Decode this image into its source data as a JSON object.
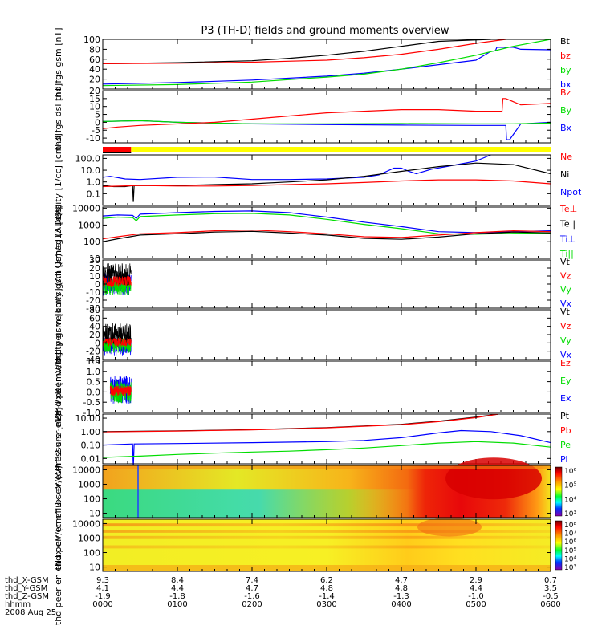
{
  "title": "P3 (TH-D) fields and ground moments overview",
  "colors": {
    "black": "#000000",
    "red": "#ff0000",
    "green": "#00dd00",
    "blue": "#0000ff",
    "yellow": "#ffff00",
    "bg": "#ffffff"
  },
  "chart_data": [
    {
      "type": "line",
      "ylabel": "thd fgs gsm [nT]",
      "yscale": "linear",
      "ylim": [
        0,
        100
      ],
      "yticks": [
        "100",
        "80",
        "60",
        "40",
        "20"
      ],
      "xlim": [
        0,
        6
      ],
      "legend": [
        {
          "label": "Bt",
          "color": "#000000"
        },
        {
          "label": "bz",
          "color": "#ff0000"
        },
        {
          "label": "by",
          "color": "#00dd00"
        },
        {
          "label": "bx",
          "color": "#0000ff"
        }
      ],
      "series": [
        {
          "color": "#000000",
          "x": [
            0,
            1,
            2,
            2.5,
            3,
            3.5,
            4,
            4.5,
            5.2
          ],
          "y": [
            51,
            53,
            57,
            62,
            68,
            76,
            86,
            96,
            100
          ]
        },
        {
          "color": "#ff0000",
          "x": [
            0,
            1,
            2,
            3,
            3.5,
            4,
            4.5,
            5,
            5.4
          ],
          "y": [
            51,
            52,
            54,
            58,
            63,
            70,
            80,
            92,
            100
          ]
        },
        {
          "color": "#0000ff",
          "x": [
            0,
            1,
            2,
            3,
            3.5,
            4,
            4.5,
            5,
            5.2,
            5.26,
            5.28,
            5.5,
            5.6,
            6
          ],
          "y": [
            10,
            13,
            18,
            26,
            32,
            40,
            49,
            58,
            76,
            77,
            84,
            84,
            80,
            79
          ]
        },
        {
          "color": "#00dd00",
          "x": [
            0,
            1,
            2,
            3,
            3.5,
            4,
            4.5,
            5,
            5.5,
            6
          ],
          "y": [
            7,
            9,
            14,
            24,
            30,
            40,
            53,
            68,
            86,
            100
          ]
        }
      ]
    },
    {
      "type": "line",
      "ylabel": "thd fgs dsl [nT]",
      "yscale": "linear",
      "ylim": [
        -13,
        20
      ],
      "yticks": [
        "20",
        "15",
        "10",
        "5",
        "0",
        "-5",
        "-10"
      ],
      "xlim": [
        0,
        6
      ],
      "legend": [
        {
          "label": "Bz",
          "color": "#ff0000"
        },
        {
          "label": "By",
          "color": "#00dd00"
        },
        {
          "label": "Bx",
          "color": "#0000ff"
        }
      ],
      "series": [
        {
          "color": "#0000ff",
          "x": [
            0,
            0.5,
            1,
            2,
            3,
            4,
            5,
            5.4,
            5.41,
            5.45,
            5.6,
            6
          ],
          "y": [
            0.5,
            1,
            0,
            -1,
            -1.5,
            -1.8,
            -2,
            -2,
            -11,
            -11,
            -1,
            0
          ]
        },
        {
          "color": "#00dd00",
          "x": [
            0,
            0.5,
            1,
            2,
            3,
            4,
            5,
            5.5,
            6
          ],
          "y": [
            0.5,
            1,
            0,
            -1,
            -1,
            -0.8,
            -1,
            -1,
            -0.5
          ]
        },
        {
          "color": "#ff0000",
          "x": [
            0,
            0.2,
            0.5,
            1,
            1.5,
            2,
            2.5,
            3,
            3.5,
            4,
            4.5,
            5,
            5.35,
            5.36,
            5.4,
            5.6,
            6
          ],
          "y": [
            -4,
            -3,
            -2,
            -1,
            0,
            2,
            4,
            6,
            7,
            8,
            8,
            7,
            7,
            15,
            15,
            11,
            12
          ]
        }
      ]
    },
    {
      "type": "line",
      "ylabel": "Density [1/cc] [cm-3]",
      "yscale": "log",
      "ylim": [
        0.01,
        200
      ],
      "yticks": [
        "100.0",
        "10.0",
        "1.0",
        "0.1"
      ],
      "xlim": [
        0,
        6
      ],
      "legend": [
        {
          "label": "Ne",
          "color": "#ff0000"
        },
        {
          "label": "Ni",
          "color": "#000000"
        },
        {
          "label": "Npot",
          "color": "#0000ff"
        }
      ],
      "series": [
        {
          "color": "#0000ff",
          "x": [
            0,
            0.1,
            0.3,
            0.5,
            1,
            1.5,
            2,
            2.5,
            3,
            3.5,
            3.7,
            3.9,
            4,
            4.1,
            4.2,
            4.4,
            4.6,
            5,
            5.2
          ],
          "y": [
            2.5,
            3,
            1.8,
            1.6,
            2.5,
            2.6,
            1.6,
            1.6,
            1.8,
            2.5,
            4,
            15,
            15,
            8,
            5,
            12,
            20,
            60,
            200
          ]
        },
        {
          "color": "#000000",
          "x": [
            0,
            0.15,
            0.3,
            0.4,
            0.41,
            0.42,
            0.5,
            1,
            1.5,
            2,
            2.5,
            3,
            3.5,
            4,
            4.5,
            5,
            5.5,
            6
          ],
          "y": [
            0.5,
            0.4,
            0.4,
            0.5,
            0.02,
            0.5,
            0.5,
            0.5,
            0.6,
            0.7,
            1,
            1.5,
            3,
            8,
            20,
            40,
            30,
            5
          ]
        },
        {
          "color": "#ff0000",
          "x": [
            0,
            0.5,
            1,
            1.5,
            2,
            2.5,
            3,
            3.5,
            4,
            4.5,
            5,
            5.5,
            6
          ],
          "y": [
            0.4,
            0.5,
            0.45,
            0.45,
            0.5,
            0.6,
            0.7,
            0.9,
            1.2,
            1.5,
            1.5,
            1.2,
            0.7
          ]
        }
      ]
    },
    {
      "type": "line",
      "ylabel": "mag13 [eV]",
      "yscale": "log",
      "ylim": [
        10,
        12000
      ],
      "yticks": [
        "10000",
        "1000",
        "100",
        "10"
      ],
      "xlim": [
        0,
        6
      ],
      "legend": [
        {
          "label": "Te⊥",
          "color": "#ff0000"
        },
        {
          "label": "Te||",
          "color": "#000000"
        },
        {
          "label": "Ti⊥",
          "color": "#0000ff"
        },
        {
          "label": "Ti||",
          "color": "#00dd00"
        }
      ],
      "series": [
        {
          "color": "#0000ff",
          "x": [
            0,
            0.2,
            0.4,
            0.45,
            0.5,
            1,
            1.5,
            2,
            2.5,
            3,
            3.5,
            4,
            4.5,
            5,
            5.5,
            6
          ],
          "y": [
            3500,
            4000,
            3800,
            2500,
            4500,
            5500,
            6500,
            7000,
            5500,
            3000,
            1500,
            800,
            400,
            350,
            400,
            450
          ]
        },
        {
          "color": "#00dd00",
          "x": [
            0,
            0.2,
            0.4,
            0.45,
            0.5,
            1,
            1.5,
            2,
            2.5,
            3,
            3.5,
            4,
            4.5,
            5,
            5.5,
            6
          ],
          "y": [
            2500,
            3000,
            2800,
            1800,
            3200,
            4000,
            4800,
            5000,
            4000,
            2200,
            1100,
            600,
            300,
            280,
            320,
            330
          ]
        },
        {
          "color": "#ff0000",
          "x": [
            0,
            0.2,
            0.5,
            1,
            1.5,
            2,
            2.5,
            3,
            3.5,
            4,
            4.5,
            5,
            5.5,
            6
          ],
          "y": [
            150,
            200,
            300,
            350,
            450,
            500,
            400,
            300,
            200,
            180,
            250,
            350,
            450,
            400
          ]
        },
        {
          "color": "#000000",
          "x": [
            0,
            0.2,
            0.5,
            1,
            1.5,
            2,
            2.5,
            3,
            3.5,
            4,
            4.5,
            5,
            5.5,
            6
          ],
          "y": [
            100,
            150,
            250,
            300,
            380,
            420,
            330,
            250,
            160,
            140,
            190,
            300,
            380,
            340
          ]
        }
      ]
    },
    {
      "type": "line",
      "ylabel": "thd peir velocity gsm [km/s] (All Qs)",
      "yscale": "linear",
      "ylim": [
        -30,
        30
      ],
      "yticks": [
        "30",
        "20",
        "10",
        "0",
        "-10",
        "-20",
        "-30"
      ],
      "xlim": [
        0,
        6
      ],
      "legend": [
        {
          "label": "Vt",
          "color": "#000000"
        },
        {
          "label": "Vz",
          "color": "#ff0000"
        },
        {
          "label": "Vy",
          "color": "#00dd00"
        },
        {
          "label": "Vx",
          "color": "#0000ff"
        }
      ],
      "noise": {
        "xrange": [
          0,
          0.38
        ],
        "bands": [
          {
            "color": "#0000ff",
            "center": 0,
            "amp": 14
          },
          {
            "color": "#00dd00",
            "center": -2,
            "amp": 12
          },
          {
            "color": "#000000",
            "center": 12,
            "amp": 14
          },
          {
            "color": "#ff0000",
            "center": 3,
            "amp": 7
          }
        ]
      }
    },
    {
      "type": "line",
      "ylabel": "thd peer velocity gsm [km/s] (All Qs)",
      "yscale": "linear",
      "ylim": [
        -40,
        80
      ],
      "yticks": [
        "80",
        "60",
        "40",
        "20",
        "0",
        "-20",
        "-40"
      ],
      "xlim": [
        0,
        6
      ],
      "legend": [
        {
          "label": "Vt",
          "color": "#000000"
        },
        {
          "label": "Vz",
          "color": "#ff0000"
        },
        {
          "label": "Vy",
          "color": "#00dd00"
        },
        {
          "label": "Vx",
          "color": "#0000ff"
        }
      ],
      "noise": {
        "xrange": [
          0,
          0.38
        ],
        "bands": [
          {
            "color": "#0000ff",
            "center": -8,
            "amp": 22
          },
          {
            "color": "#00dd00",
            "center": -4,
            "amp": 20
          },
          {
            "color": "#000000",
            "center": 22,
            "amp": 26
          },
          {
            "color": "#ff0000",
            "center": 2,
            "amp": 10
          }
        ]
      }
    },
    {
      "type": "line",
      "ylabel": "E=-VxB [mV/m]",
      "yscale": "linear",
      "ylim": [
        -1.0,
        1.5
      ],
      "yticks": [
        "1.5",
        "1.0",
        "0.5",
        "0.0",
        "-0.5",
        "-1.0"
      ],
      "xlim": [
        0,
        6
      ],
      "legend": [
        {
          "label": "Ez",
          "color": "#ff0000"
        },
        {
          "label": "Ey",
          "color": "#00dd00"
        },
        {
          "label": "Ex",
          "color": "#0000ff"
        }
      ],
      "noise": {
        "xrange": [
          0.1,
          0.38
        ],
        "bands": [
          {
            "color": "#0000ff",
            "center": 0.1,
            "amp": 0.7
          },
          {
            "color": "#00dd00",
            "center": 0.0,
            "amp": 0.55
          },
          {
            "color": "#ff0000",
            "center": 0.05,
            "amp": 0.25
          }
        ]
      }
    },
    {
      "type": "line",
      "ylabel": "Pressure [nPa]",
      "yscale": "log",
      "ylim": [
        0.004,
        20
      ],
      "yticks": [
        "10.00",
        "1.00",
        "0.10",
        "0.01"
      ],
      "xlim": [
        0,
        6
      ],
      "legend": [
        {
          "label": "Pt",
          "color": "#000000"
        },
        {
          "label": "Pb",
          "color": "#ff0000"
        },
        {
          "label": "Pe",
          "color": "#00dd00"
        },
        {
          "label": "Pi",
          "color": "#0000ff"
        }
      ],
      "series": [
        {
          "color": "#000000",
          "x": [
            0,
            1,
            2,
            3,
            4,
            4.5,
            5,
            5.3
          ],
          "y": [
            1.0,
            1.15,
            1.4,
            2.0,
            3.5,
            6,
            12,
            20
          ]
        },
        {
          "color": "#ff0000",
          "x": [
            0,
            1,
            2,
            3,
            4,
            4.5,
            5,
            5.3
          ],
          "y": [
            0.95,
            1.1,
            1.35,
            1.9,
            3.3,
            5.5,
            11,
            20
          ]
        },
        {
          "color": "#0000ff",
          "x": [
            0,
            0.4,
            0.41,
            0.42,
            1,
            2,
            3,
            3.5,
            4,
            4.5,
            4.8,
            5.2,
            5.6,
            6
          ],
          "y": [
            0.1,
            0.12,
            0.002,
            0.12,
            0.13,
            0.15,
            0.18,
            0.22,
            0.35,
            0.8,
            1.2,
            1.0,
            0.5,
            0.15
          ]
        },
        {
          "color": "#00dd00",
          "x": [
            0,
            0.5,
            1,
            1.5,
            2,
            2.5,
            3,
            3.5,
            4,
            4.5,
            5,
            5.5,
            6
          ],
          "y": [
            0.012,
            0.015,
            0.02,
            0.025,
            0.03,
            0.035,
            0.045,
            0.06,
            0.09,
            0.14,
            0.18,
            0.14,
            0.07
          ]
        }
      ]
    },
    {
      "type": "heatmap",
      "ylabel": "thd peir en eflux eV/(cm^2-s-sr-eV)",
      "yscale": "log",
      "ylim": [
        5,
        20000
      ],
      "yticks": [
        "10000",
        "1000",
        "100",
        "10"
      ],
      "xlim": [
        0,
        6
      ],
      "colorbar": {
        "labels": [
          "10⁶",
          "10⁵",
          "10⁴",
          "10³"
        ]
      }
    },
    {
      "type": "heatmap",
      "ylabel": "thd peer en eflux eV/(cm^2-s-sr-eV)",
      "yscale": "log",
      "ylim": [
        5,
        20000
      ],
      "yticks": [
        "10000",
        "1000",
        "100",
        "10"
      ],
      "xlim": [
        0,
        6
      ],
      "colorbar": {
        "labels": [
          "10⁸",
          "10⁷",
          "10⁶",
          "10⁵",
          "10⁴",
          "10³"
        ]
      }
    }
  ],
  "status_bars": [
    {
      "color": "#ff0000",
      "x": [
        0,
        0.38
      ]
    },
    {
      "color": "#ffff00",
      "x": [
        0.38,
        6
      ]
    }
  ],
  "footer": {
    "rows": [
      {
        "label": "thd_X-GSM",
        "values": [
          "9.3",
          "8.4",
          "7.4",
          "6.2",
          "4.7",
          "2.9",
          "0.7"
        ]
      },
      {
        "label": "thd_Y-GSM",
        "values": [
          "4.1",
          "4.4",
          "4.7",
          "4.8",
          "4.8",
          "4.4",
          "3.5"
        ]
      },
      {
        "label": "thd_Z-GSM",
        "values": [
          "-1.9",
          "-1.8",
          "-1.6",
          "-1.4",
          "-1.3",
          "-1.0",
          "-0.5"
        ]
      },
      {
        "label": "hhmm",
        "values": [
          "0000",
          "0100",
          "0200",
          "0300",
          "0400",
          "0500",
          "0600"
        ]
      }
    ],
    "date": "2008 Aug 25"
  }
}
